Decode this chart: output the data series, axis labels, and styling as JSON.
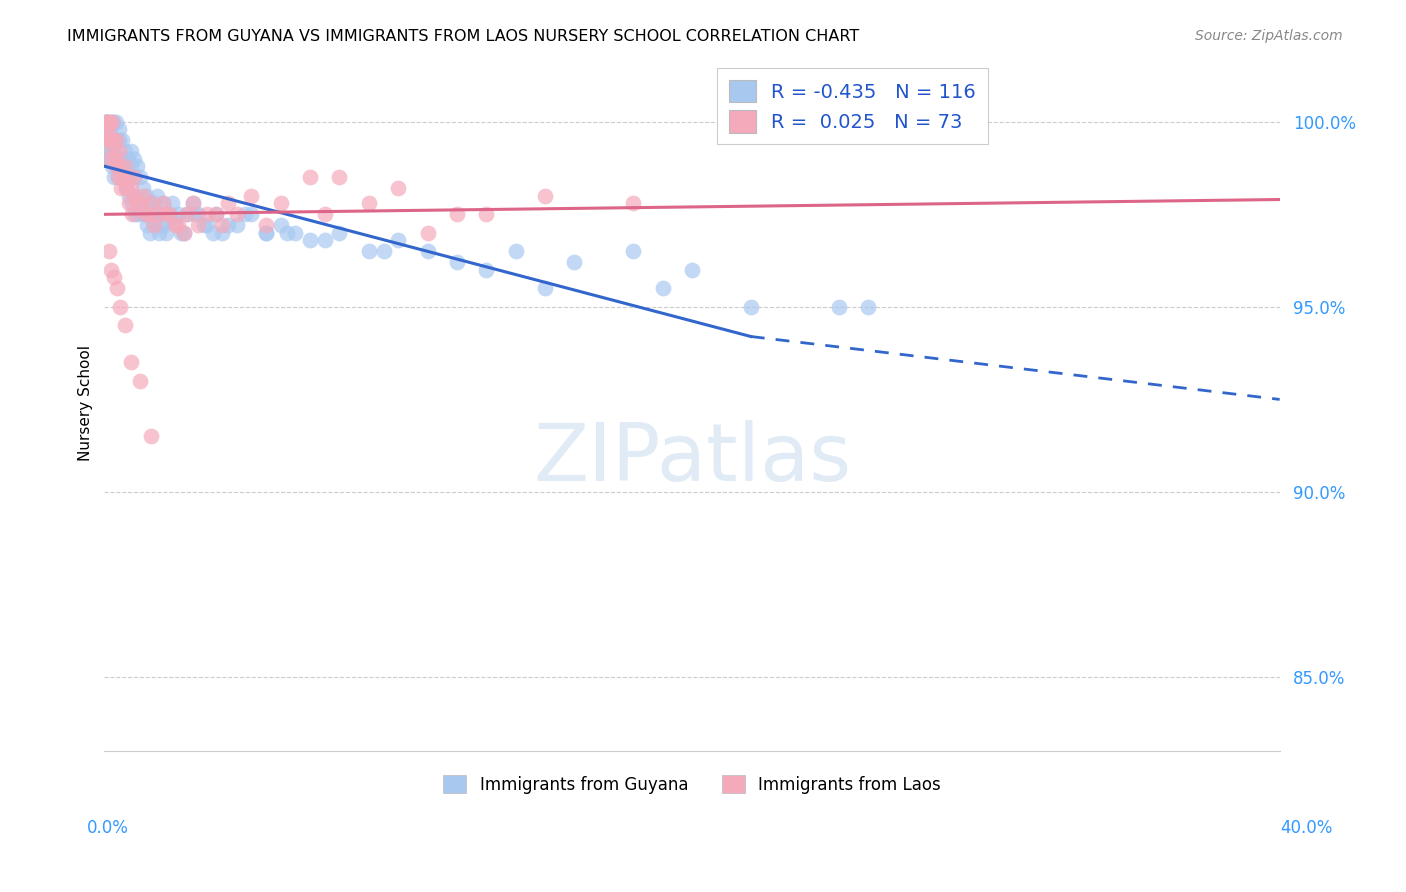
{
  "title": "IMMIGRANTS FROM GUYANA VS IMMIGRANTS FROM LAOS NURSERY SCHOOL CORRELATION CHART",
  "source": "Source: ZipAtlas.com",
  "legend_label1": "Immigrants from Guyana",
  "legend_label2": "Immigrants from Laos",
  "r1": -0.435,
  "n1": 116,
  "r2": 0.025,
  "n2": 73,
  "color1": "#A8C8F0",
  "color2": "#F5AABB",
  "trendline1_color": "#3366CC",
  "trendline2_color": "#DD6688",
  "xlim": [
    0.0,
    40.0
  ],
  "ylim": [
    83.0,
    101.8
  ],
  "yticks": [
    85.0,
    90.0,
    95.0,
    100.0
  ],
  "ytick_labels": [
    "85.0%",
    "90.0%",
    "95.0%",
    "100.0%"
  ],
  "ylabel": "Nursery School",
  "trend1_x0": 0.0,
  "trend1_y0": 98.8,
  "trend1_x1": 22.0,
  "trend1_y1": 94.2,
  "trend1_dash_x0": 22.0,
  "trend1_dash_y0": 94.2,
  "trend1_dash_x1": 40.0,
  "trend1_dash_y1": 92.5,
  "trend2_x0": 0.0,
  "trend2_y0": 97.5,
  "trend2_x1": 40.0,
  "trend2_y1": 97.9,
  "guyana_x": [
    0.05,
    0.05,
    0.06,
    0.07,
    0.08,
    0.1,
    0.1,
    0.1,
    0.15,
    0.15,
    0.2,
    0.2,
    0.2,
    0.25,
    0.25,
    0.3,
    0.3,
    0.3,
    0.35,
    0.4,
    0.4,
    0.5,
    0.5,
    0.5,
    0.6,
    0.6,
    0.7,
    0.7,
    0.8,
    0.8,
    0.9,
    0.9,
    1.0,
    1.0,
    1.0,
    1.1,
    1.2,
    1.3,
    1.4,
    1.5,
    1.6,
    1.7,
    1.8,
    1.9,
    2.0,
    2.0,
    2.2,
    2.3,
    2.5,
    2.6,
    2.8,
    3.0,
    3.2,
    3.5,
    3.8,
    4.0,
    4.5,
    5.0,
    5.5,
    6.0,
    6.5,
    7.0,
    8.0,
    9.0,
    10.0,
    11.0,
    12.0,
    14.0,
    16.0,
    18.0,
    20.0,
    25.0,
    0.12,
    0.18,
    0.22,
    0.28,
    0.32,
    0.38,
    0.42,
    0.48,
    0.55,
    0.65,
    0.75,
    0.85,
    0.95,
    1.05,
    1.15,
    1.25,
    1.35,
    1.45,
    1.55,
    1.65,
    1.75,
    1.85,
    1.95,
    2.1,
    2.4,
    2.7,
    3.1,
    3.4,
    3.7,
    4.2,
    4.8,
    5.5,
    6.2,
    7.5,
    9.5,
    13.0,
    15.0,
    19.0,
    22.0,
    26.0,
    0.08,
    0.13,
    0.17,
    0.23,
    0.27,
    0.33
  ],
  "guyana_y": [
    100.0,
    99.5,
    100.0,
    99.8,
    99.5,
    100.0,
    99.5,
    99.0,
    100.0,
    99.5,
    99.8,
    99.5,
    99.0,
    100.0,
    99.2,
    100.0,
    99.5,
    99.0,
    99.0,
    100.0,
    99.5,
    99.8,
    99.5,
    98.8,
    99.5,
    99.0,
    99.2,
    98.8,
    99.0,
    98.5,
    99.2,
    98.8,
    99.0,
    98.5,
    98.0,
    98.8,
    98.5,
    98.2,
    98.0,
    97.8,
    97.5,
    97.8,
    98.0,
    97.5,
    97.8,
    97.2,
    97.5,
    97.8,
    97.5,
    97.0,
    97.5,
    97.8,
    97.5,
    97.2,
    97.5,
    97.0,
    97.2,
    97.5,
    97.0,
    97.2,
    97.0,
    96.8,
    97.0,
    96.5,
    96.8,
    96.5,
    96.2,
    96.5,
    96.2,
    96.5,
    96.0,
    95.0,
    99.5,
    99.2,
    99.5,
    99.2,
    99.0,
    98.8,
    99.0,
    98.5,
    98.8,
    98.5,
    98.2,
    98.0,
    97.8,
    97.5,
    97.5,
    97.8,
    97.5,
    97.2,
    97.0,
    97.3,
    97.5,
    97.0,
    97.2,
    97.0,
    97.3,
    97.0,
    97.5,
    97.2,
    97.0,
    97.2,
    97.5,
    97.0,
    97.0,
    96.8,
    96.5,
    96.0,
    95.5,
    95.5,
    95.0,
    95.0,
    99.8,
    99.5,
    99.3,
    99.0,
    98.8,
    98.5
  ],
  "laos_x": [
    0.05,
    0.08,
    0.1,
    0.12,
    0.15,
    0.2,
    0.2,
    0.25,
    0.3,
    0.35,
    0.4,
    0.5,
    0.5,
    0.6,
    0.7,
    0.8,
    0.9,
    1.0,
    1.0,
    1.2,
    1.3,
    1.5,
    1.6,
    1.8,
    2.0,
    2.2,
    2.5,
    2.8,
    3.0,
    3.5,
    4.0,
    4.5,
    5.0,
    6.0,
    7.0,
    8.0,
    9.0,
    10.0,
    12.0,
    15.0,
    18.0,
    0.1,
    0.18,
    0.28,
    0.38,
    0.45,
    0.55,
    0.65,
    0.75,
    0.85,
    0.95,
    1.1,
    1.4,
    1.7,
    2.1,
    2.4,
    2.7,
    3.2,
    3.8,
    4.2,
    5.5,
    7.5,
    11.0,
    13.0,
    0.15,
    0.22,
    0.32,
    0.42,
    0.52,
    0.7,
    0.9,
    1.2,
    1.6
  ],
  "laos_y": [
    100.0,
    99.8,
    100.0,
    99.5,
    100.0,
    99.5,
    99.0,
    100.0,
    99.5,
    99.0,
    99.5,
    99.2,
    98.8,
    98.5,
    98.8,
    98.5,
    98.2,
    98.5,
    98.0,
    97.8,
    98.0,
    97.5,
    97.8,
    97.5,
    97.8,
    97.5,
    97.2,
    97.5,
    97.8,
    97.5,
    97.2,
    97.5,
    98.0,
    97.8,
    98.5,
    98.5,
    97.8,
    98.2,
    97.5,
    98.0,
    97.8,
    99.8,
    99.5,
    99.2,
    98.8,
    98.5,
    98.2,
    98.5,
    98.2,
    97.8,
    97.5,
    97.8,
    97.5,
    97.2,
    97.5,
    97.2,
    97.0,
    97.2,
    97.5,
    97.8,
    97.2,
    97.5,
    97.0,
    97.5,
    96.5,
    96.0,
    95.8,
    95.5,
    95.0,
    94.5,
    93.5,
    93.0,
    91.5
  ]
}
